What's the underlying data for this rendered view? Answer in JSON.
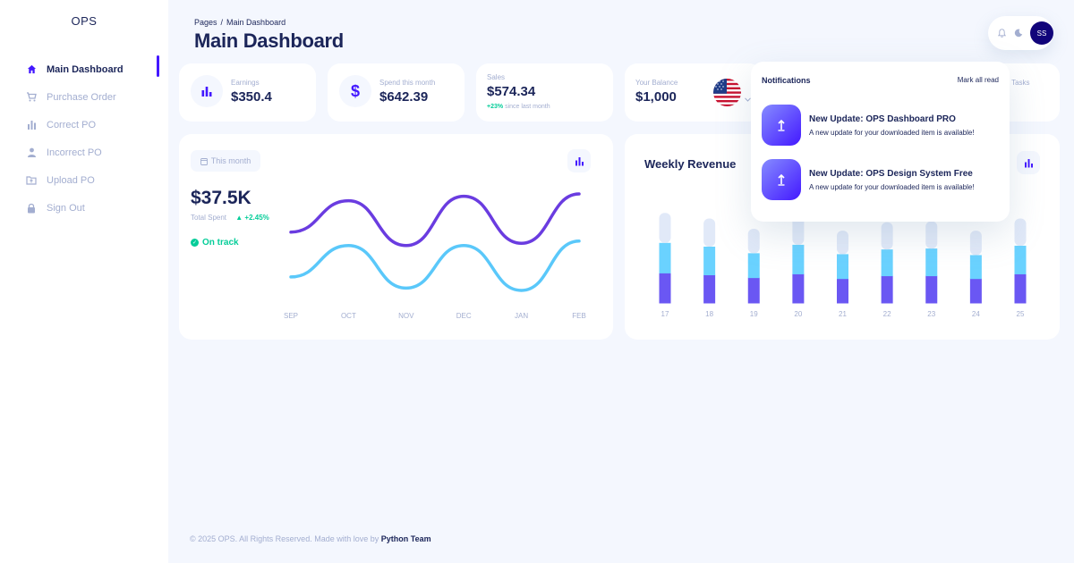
{
  "sidebar": {
    "brand": "OPS",
    "items": [
      {
        "label": "Main Dashboard",
        "icon": "home-icon",
        "active": true
      },
      {
        "label": "Purchase Order",
        "icon": "cart-icon"
      },
      {
        "label": "Correct PO",
        "icon": "bar-chart-icon"
      },
      {
        "label": "Incorrect PO",
        "icon": "person-icon"
      },
      {
        "label": "Upload PO",
        "icon": "folder-upload-icon"
      },
      {
        "label": "Sign Out",
        "icon": "lock-icon"
      }
    ]
  },
  "header": {
    "breadcrumb_root": "Pages",
    "breadcrumb_sep": "/",
    "breadcrumb_current": "Main Dashboard",
    "title": "Main Dashboard",
    "avatar_initials": "SS"
  },
  "stats": {
    "earnings": {
      "label": "Earnings",
      "value": "$350.4"
    },
    "spend": {
      "label": "Spend this month",
      "value": "$642.39"
    },
    "sales": {
      "label": "Sales",
      "value": "$574.34",
      "change": "+23%",
      "since": "since last month"
    },
    "balance": {
      "label": "Your Balance",
      "value": "$1,000"
    },
    "hidden_label": "New Tasks"
  },
  "spend_chart": {
    "period": "This month",
    "value": "$37.5K",
    "total_label": "Total Spent",
    "change": "+2.45%",
    "status": "On track"
  },
  "weekly": {
    "title": "Weekly Revenue"
  },
  "notifications": {
    "title": "Notifications",
    "mark_all": "Mark all read",
    "items": [
      {
        "title": "New Update: OPS Dashboard PRO",
        "desc": "A new update for your downloaded item is available!"
      },
      {
        "title": "New Update: OPS Design System Free",
        "desc": "A new update for your downloaded item is available!"
      }
    ]
  },
  "footer": {
    "text": "© 2025 OPS. All Rights Reserved. Made with love by",
    "team": "Python Team"
  },
  "colors": {
    "accent": "#4318ff",
    "purple": "#6a3ce0",
    "cyan": "#5ac8fa",
    "green": "#05cd99",
    "text": "#1b2559",
    "muted": "#a3aed0"
  },
  "chart_data": [
    {
      "type": "line",
      "x": [
        "SEP",
        "OCT",
        "NOV",
        "DEC",
        "JAN",
        "FEB"
      ],
      "series": [
        {
          "color": "#6a3ce0",
          "values": [
            3.2,
            4.6,
            2.6,
            4.8,
            2.7,
            4.9
          ]
        },
        {
          "color": "#5ac8fa",
          "values": [
            1.2,
            2.6,
            0.7,
            2.6,
            0.6,
            2.8
          ]
        }
      ],
      "ylim": [
        0,
        5.5
      ],
      "grid": false,
      "title": "",
      "xlabel": "",
      "ylabel": ""
    },
    {
      "type": "bar",
      "stacked": true,
      "categories": [
        "17",
        "18",
        "19",
        "20",
        "21",
        "22",
        "23",
        "24",
        "25"
      ],
      "series": [
        {
          "color": "#6a57f3",
          "values": [
            32,
            30,
            27,
            31,
            26,
            29,
            29,
            26,
            31
          ]
        },
        {
          "color": "#6ad2ff",
          "values": [
            32,
            30,
            26,
            31,
            26,
            28,
            29,
            25,
            30
          ]
        },
        {
          "color": "#e1e9f8",
          "values": [
            32,
            30,
            26,
            30,
            25,
            29,
            29,
            26,
            29
          ]
        }
      ],
      "ylim": [
        0,
        100
      ],
      "grid": false,
      "title": ""
    }
  ]
}
